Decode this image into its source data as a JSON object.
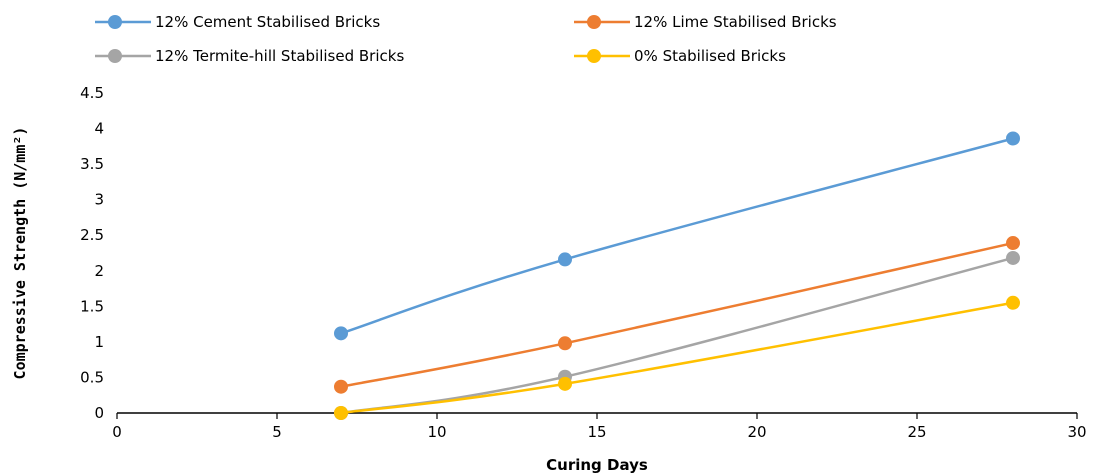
{
  "chart_data": {
    "type": "line",
    "xlabel": "Curing Days",
    "ylabel": "Compressive Strength (N/mm²)",
    "xlim": [
      0,
      30
    ],
    "ylim": [
      0,
      4.5
    ],
    "xticks": [
      0,
      5,
      10,
      15,
      20,
      25,
      30
    ],
    "yticks": [
      0,
      0.5,
      1,
      1.5,
      2,
      2.5,
      3,
      3.5,
      4,
      4.5
    ],
    "xtick_labels": [
      "0",
      "5",
      "10",
      "15",
      "20",
      "25",
      "30"
    ],
    "ytick_labels": [
      "0",
      "0.5",
      "1",
      "1.5",
      "2",
      "2.5",
      "3",
      "3.5",
      "4",
      "4.5"
    ],
    "grid": false,
    "legend_position": "top",
    "series": [
      {
        "name": "12% Cement Stabilised Bricks",
        "color": "#5b9bd5",
        "x": [
          7,
          14,
          28
        ],
        "y": [
          1.12,
          2.16,
          3.86
        ]
      },
      {
        "name": "12% Lime Stabilised Bricks",
        "color": "#ed7d31",
        "x": [
          7,
          14,
          28
        ],
        "y": [
          0.37,
          0.98,
          2.39
        ]
      },
      {
        "name": "12% Termite-hill Stabilised Bricks",
        "color": "#a5a5a5",
        "x": [
          7,
          14,
          28
        ],
        "y": [
          0.0,
          0.51,
          2.18
        ]
      },
      {
        "name": "0% Stabilised Bricks",
        "color": "#ffc000",
        "x": [
          7,
          14,
          28
        ],
        "y": [
          0.0,
          0.41,
          1.55
        ]
      }
    ]
  }
}
